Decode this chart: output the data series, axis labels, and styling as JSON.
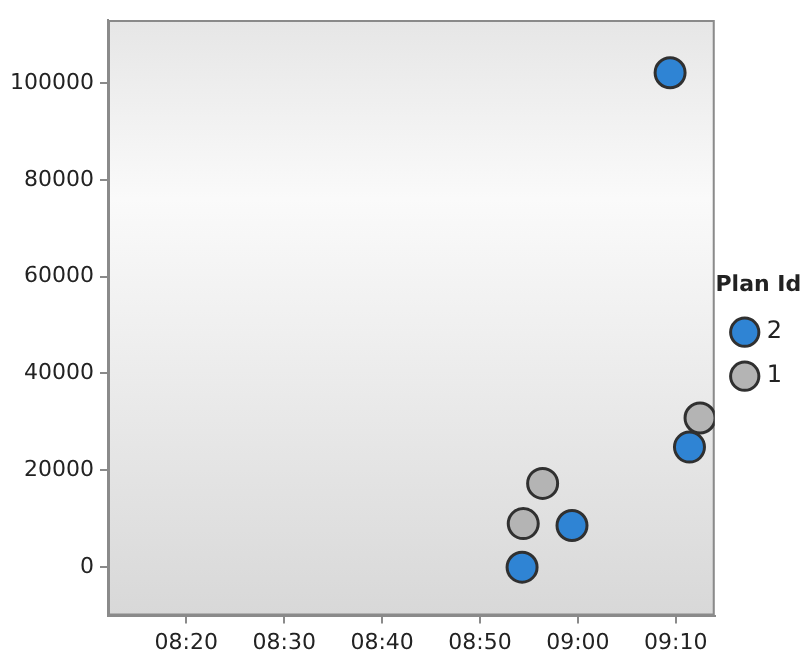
{
  "chart_data": {
    "type": "scatter",
    "legend_title": "Plan Id",
    "legend": "right",
    "grid": false,
    "marker": "circle",
    "xlim": [
      8.2,
      9.233
    ],
    "xticks": [
      {
        "value": 8.3333,
        "label": "08:20"
      },
      {
        "value": 8.5,
        "label": "08:30"
      },
      {
        "value": 8.6667,
        "label": "08:40"
      },
      {
        "value": 8.8333,
        "label": "08:50"
      },
      {
        "value": 9,
        "label": "09:00"
      },
      {
        "value": 9.1667,
        "label": "09:10"
      }
    ],
    "ylim": [
      -10000,
      113000
    ],
    "yticks": [
      0,
      20000,
      40000,
      60000,
      80000,
      100000
    ],
    "series": [
      {
        "name": "2",
        "color": "#2f84d4",
        "x": [
          8.905,
          8.99,
          9.157,
          9.19
        ],
        "values": [
          0,
          8600,
          102100,
          24800
        ]
      },
      {
        "name": "1",
        "color": "#b4b4b4",
        "x": [
          8.907,
          8.94,
          9.208
        ],
        "values": [
          9000,
          17300,
          30800
        ]
      }
    ]
  }
}
